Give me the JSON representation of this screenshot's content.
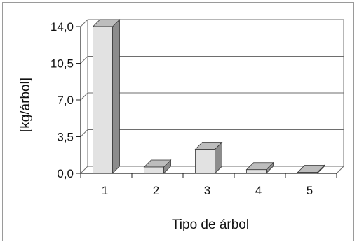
{
  "chart_data": {
    "type": "bar",
    "categories": [
      "1",
      "2",
      "3",
      "4",
      "5"
    ],
    "values": [
      14.0,
      0.6,
      2.3,
      0.35,
      0.1
    ],
    "xlabel": "Tipo de árbol",
    "ylabel": "[kg/árbol]",
    "ylim": [
      0,
      14
    ],
    "yticks": [
      "0,0",
      "3,5",
      "7,0",
      "10,5",
      "14,0"
    ],
    "grid": true,
    "legend": "none",
    "colors": {
      "bar_front": "#e2e2e2",
      "bar_top": "#bdbdbd",
      "bar_side": "#8c8c8c",
      "grid": "#6e6e6e",
      "axis": "#222222"
    }
  }
}
